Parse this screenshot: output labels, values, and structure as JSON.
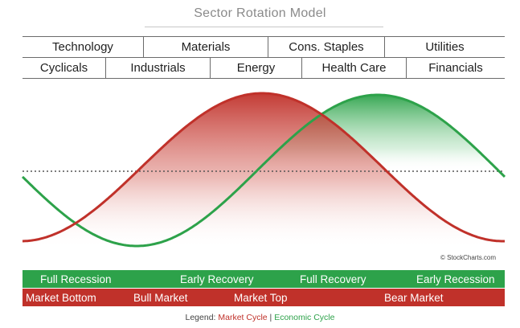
{
  "title": "Sector Rotation Model",
  "sectors_top": [
    "Technology",
    "Materials",
    "Cons. Staples",
    "Utilities"
  ],
  "sectors_bottom": [
    "Cyclicals",
    "Industrials",
    "Energy",
    "Health Care",
    "Financials"
  ],
  "economic_phases": [
    "Full Recession",
    "Early Recovery",
    "Full Recovery",
    "Early Recession"
  ],
  "market_phases": [
    "Market Bottom",
    "Bull Market",
    "Market Top",
    "Bear Market"
  ],
  "credit": "© StockCharts.com",
  "legend": {
    "prefix": "Legend: ",
    "market_label": "Market Cycle",
    "separator": " | ",
    "economic_label": "Economic Cycle"
  },
  "colors": {
    "market": "#c0312a",
    "economic": "#2da24a"
  }
}
